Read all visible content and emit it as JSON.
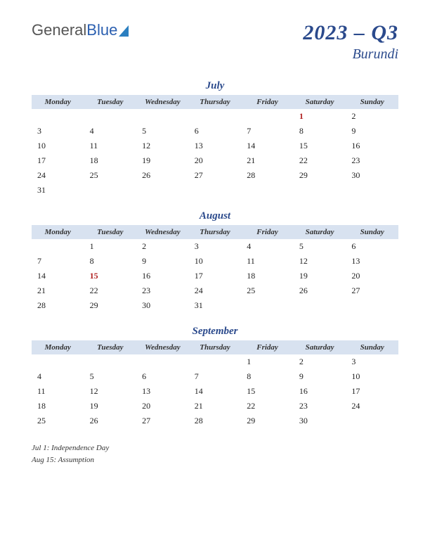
{
  "logo": {
    "part1": "General",
    "part2": "Blue"
  },
  "title": "2023 – Q3",
  "subtitle": "Burundi",
  "day_headers": [
    "Monday",
    "Tuesday",
    "Wednesday",
    "Thursday",
    "Friday",
    "Saturday",
    "Sunday"
  ],
  "colors": {
    "header_bg": "#d8e2f0",
    "title_color": "#2b4a8c",
    "holiday_color": "#b02020",
    "text_color": "#222222",
    "background": "#ffffff"
  },
  "months": [
    {
      "name": "July",
      "weeks": [
        [
          "",
          "",
          "",
          "",
          "",
          "1",
          "2"
        ],
        [
          "3",
          "4",
          "5",
          "6",
          "7",
          "8",
          "9"
        ],
        [
          "10",
          "11",
          "12",
          "13",
          "14",
          "15",
          "16"
        ],
        [
          "17",
          "18",
          "19",
          "20",
          "21",
          "22",
          "23"
        ],
        [
          "24",
          "25",
          "26",
          "27",
          "28",
          "29",
          "30"
        ],
        [
          "31",
          "",
          "",
          "",
          "",
          "",
          ""
        ]
      ],
      "holidays": [
        [
          0,
          5
        ]
      ]
    },
    {
      "name": "August",
      "weeks": [
        [
          "",
          "1",
          "2",
          "3",
          "4",
          "5",
          "6"
        ],
        [
          "7",
          "8",
          "9",
          "10",
          "11",
          "12",
          "13"
        ],
        [
          "14",
          "15",
          "16",
          "17",
          "18",
          "19",
          "20"
        ],
        [
          "21",
          "22",
          "23",
          "24",
          "25",
          "26",
          "27"
        ],
        [
          "28",
          "29",
          "30",
          "31",
          "",
          "",
          ""
        ]
      ],
      "holidays": [
        [
          2,
          1
        ]
      ]
    },
    {
      "name": "September",
      "weeks": [
        [
          "",
          "",
          "",
          "",
          "1",
          "2",
          "3"
        ],
        [
          "4",
          "5",
          "6",
          "7",
          "8",
          "9",
          "10"
        ],
        [
          "11",
          "12",
          "13",
          "14",
          "15",
          "16",
          "17"
        ],
        [
          "18",
          "19",
          "20",
          "21",
          "22",
          "23",
          "24"
        ],
        [
          "25",
          "26",
          "27",
          "28",
          "29",
          "30",
          ""
        ]
      ],
      "holidays": []
    }
  ],
  "holiday_notes": [
    "Jul 1: Independence Day",
    "Aug 15: Assumption"
  ]
}
